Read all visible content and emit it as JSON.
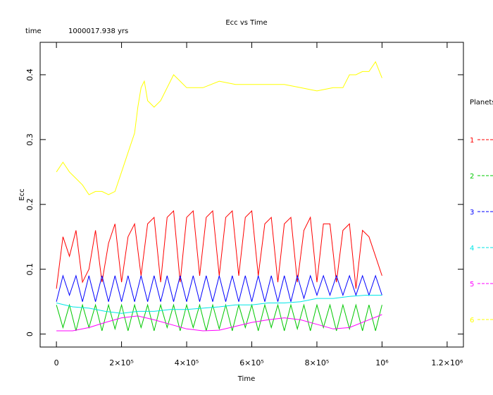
{
  "chart_data": {
    "type": "line",
    "title": "Ecc vs Time",
    "time_label": "time",
    "time_value": "1000017.938 yrs",
    "xlabel": "Time",
    "ylabel": "Ecc",
    "xlim": [
      -50000,
      1250000
    ],
    "ylim": [
      -0.02,
      0.45
    ],
    "x_ticks": [
      {
        "value": 0,
        "label": "0"
      },
      {
        "value": 200000,
        "label": "2×10⁵"
      },
      {
        "value": 400000,
        "label": "4×10⁵"
      },
      {
        "value": 600000,
        "label": "6×10⁵"
      },
      {
        "value": 800000,
        "label": "8×10⁵"
      },
      {
        "value": 1000000,
        "label": "10⁶"
      },
      {
        "value": 1200000,
        "label": "1.2×10⁶"
      }
    ],
    "y_ticks": [
      {
        "value": 0,
        "label": "0"
      },
      {
        "value": 0.1,
        "label": "0.1"
      },
      {
        "value": 0.2,
        "label": "0.2"
      },
      {
        "value": 0.3,
        "label": "0.3"
      },
      {
        "value": 0.4,
        "label": "0.4"
      }
    ],
    "legend_title": "Planets",
    "legend_position": "right, outside plot",
    "series": [
      {
        "name": "1",
        "color": "#ff0000",
        "x": [
          0,
          20000,
          40000,
          60000,
          80000,
          100000,
          120000,
          140000,
          160000,
          180000,
          200000,
          220000,
          240000,
          260000,
          280000,
          300000,
          320000,
          340000,
          360000,
          380000,
          400000,
          420000,
          440000,
          460000,
          480000,
          500000,
          520000,
          540000,
          560000,
          580000,
          600000,
          620000,
          640000,
          660000,
          680000,
          700000,
          720000,
          740000,
          760000,
          780000,
          800000,
          820000,
          840000,
          860000,
          880000,
          900000,
          920000,
          940000,
          960000,
          980000,
          1000000
        ],
        "y": [
          0.07,
          0.15,
          0.12,
          0.16,
          0.08,
          0.1,
          0.16,
          0.08,
          0.14,
          0.17,
          0.08,
          0.15,
          0.17,
          0.09,
          0.17,
          0.18,
          0.08,
          0.18,
          0.19,
          0.08,
          0.18,
          0.19,
          0.09,
          0.18,
          0.19,
          0.09,
          0.18,
          0.19,
          0.09,
          0.18,
          0.19,
          0.09,
          0.17,
          0.18,
          0.08,
          0.17,
          0.18,
          0.08,
          0.16,
          0.18,
          0.08,
          0.17,
          0.17,
          0.08,
          0.16,
          0.17,
          0.07,
          0.16,
          0.15,
          0.12,
          0.09
        ]
      },
      {
        "name": "2",
        "color": "#00c800",
        "x": [
          0,
          20000,
          40000,
          60000,
          80000,
          100000,
          120000,
          140000,
          160000,
          180000,
          200000,
          220000,
          240000,
          260000,
          280000,
          300000,
          320000,
          340000,
          360000,
          380000,
          400000,
          420000,
          440000,
          460000,
          480000,
          500000,
          520000,
          540000,
          560000,
          580000,
          600000,
          620000,
          640000,
          660000,
          680000,
          700000,
          720000,
          740000,
          760000,
          780000,
          800000,
          820000,
          840000,
          860000,
          880000,
          900000,
          920000,
          940000,
          960000,
          980000,
          1000000
        ],
        "y": [
          0.045,
          0.01,
          0.045,
          0.005,
          0.045,
          0.01,
          0.045,
          0.005,
          0.045,
          0.008,
          0.045,
          0.005,
          0.045,
          0.01,
          0.045,
          0.005,
          0.045,
          0.01,
          0.045,
          0.005,
          0.045,
          0.01,
          0.045,
          0.005,
          0.045,
          0.008,
          0.045,
          0.005,
          0.045,
          0.01,
          0.045,
          0.005,
          0.045,
          0.01,
          0.045,
          0.005,
          0.045,
          0.008,
          0.045,
          0.005,
          0.045,
          0.01,
          0.045,
          0.005,
          0.045,
          0.008,
          0.045,
          0.005,
          0.045,
          0.005,
          0.045
        ]
      },
      {
        "name": "3",
        "color": "#0000ff",
        "x": [
          0,
          20000,
          40000,
          60000,
          80000,
          100000,
          120000,
          140000,
          160000,
          180000,
          200000,
          220000,
          240000,
          260000,
          280000,
          300000,
          320000,
          340000,
          360000,
          380000,
          400000,
          420000,
          440000,
          460000,
          480000,
          500000,
          520000,
          540000,
          560000,
          580000,
          600000,
          620000,
          640000,
          660000,
          680000,
          700000,
          720000,
          740000,
          760000,
          780000,
          800000,
          820000,
          840000,
          860000,
          880000,
          900000,
          920000,
          940000,
          960000,
          980000,
          1000000
        ],
        "y": [
          0.05,
          0.09,
          0.06,
          0.09,
          0.05,
          0.09,
          0.05,
          0.09,
          0.05,
          0.09,
          0.05,
          0.09,
          0.05,
          0.09,
          0.05,
          0.09,
          0.05,
          0.09,
          0.05,
          0.09,
          0.05,
          0.09,
          0.05,
          0.09,
          0.05,
          0.09,
          0.05,
          0.09,
          0.05,
          0.09,
          0.05,
          0.09,
          0.05,
          0.09,
          0.05,
          0.09,
          0.05,
          0.09,
          0.055,
          0.09,
          0.06,
          0.09,
          0.06,
          0.09,
          0.06,
          0.09,
          0.06,
          0.09,
          0.06,
          0.09,
          0.06
        ]
      },
      {
        "name": "4",
        "color": "#00e6e6",
        "x": [
          0,
          50000,
          100000,
          150000,
          200000,
          250000,
          300000,
          350000,
          400000,
          450000,
          500000,
          550000,
          600000,
          650000,
          700000,
          750000,
          800000,
          850000,
          900000,
          950000,
          1000000
        ],
        "y": [
          0.048,
          0.042,
          0.04,
          0.035,
          0.032,
          0.035,
          0.035,
          0.038,
          0.038,
          0.04,
          0.042,
          0.045,
          0.045,
          0.048,
          0.048,
          0.05,
          0.055,
          0.055,
          0.058,
          0.06,
          0.06
        ]
      },
      {
        "name": "5",
        "color": "#ff00ff",
        "x": [
          0,
          50000,
          100000,
          150000,
          200000,
          250000,
          300000,
          350000,
          400000,
          450000,
          500000,
          550000,
          600000,
          650000,
          700000,
          750000,
          800000,
          850000,
          900000,
          950000,
          1000000
        ],
        "y": [
          0.005,
          0.005,
          0.01,
          0.018,
          0.025,
          0.028,
          0.022,
          0.015,
          0.008,
          0.005,
          0.006,
          0.012,
          0.018,
          0.022,
          0.025,
          0.022,
          0.015,
          0.008,
          0.01,
          0.02,
          0.03
        ]
      },
      {
        "name": "6",
        "color": "#ffff00",
        "x": [
          0,
          20000,
          40000,
          60000,
          80000,
          100000,
          120000,
          140000,
          160000,
          180000,
          200000,
          220000,
          240000,
          250000,
          260000,
          270000,
          280000,
          300000,
          320000,
          340000,
          360000,
          380000,
          400000,
          450000,
          500000,
          550000,
          600000,
          650000,
          700000,
          750000,
          800000,
          850000,
          880000,
          900000,
          920000,
          940000,
          960000,
          980000,
          1000000
        ],
        "y": [
          0.25,
          0.265,
          0.25,
          0.24,
          0.23,
          0.215,
          0.22,
          0.22,
          0.215,
          0.22,
          0.25,
          0.28,
          0.31,
          0.35,
          0.38,
          0.39,
          0.36,
          0.35,
          0.36,
          0.38,
          0.4,
          0.39,
          0.38,
          0.38,
          0.39,
          0.385,
          0.385,
          0.385,
          0.385,
          0.38,
          0.375,
          0.38,
          0.38,
          0.4,
          0.4,
          0.405,
          0.405,
          0.42,
          0.395
        ]
      }
    ]
  }
}
